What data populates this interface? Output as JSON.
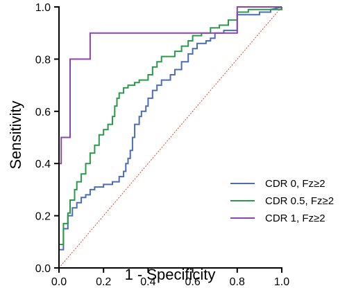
{
  "chart_data": {
    "type": "line",
    "title": "",
    "xlabel": "1 - Specificity",
    "ylabel": "Sensitivity",
    "xlim": [
      0,
      1
    ],
    "ylim": [
      0,
      1
    ],
    "x_ticks": [
      "0.0",
      "0.2",
      "0.4",
      "0.6",
      "0.8",
      "1.0"
    ],
    "y_ticks": [
      "0.0",
      "0.2",
      "0.4",
      "0.6",
      "0.8",
      "1.0"
    ],
    "grid": false,
    "legend_position": "bottom-right",
    "reference_line": {
      "color": "#e8472e",
      "style": "dotted"
    },
    "series": [
      {
        "name": "CDR 0, Fz≥2",
        "color": "#4a6db5",
        "points": [
          [
            0,
            0
          ],
          [
            0,
            0.07
          ],
          [
            0.02,
            0.07
          ],
          [
            0.02,
            0.15
          ],
          [
            0.04,
            0.15
          ],
          [
            0.04,
            0.2
          ],
          [
            0.06,
            0.2
          ],
          [
            0.06,
            0.23
          ],
          [
            0.08,
            0.23
          ],
          [
            0.08,
            0.25
          ],
          [
            0.1,
            0.25
          ],
          [
            0.1,
            0.27
          ],
          [
            0.12,
            0.27
          ],
          [
            0.12,
            0.28
          ],
          [
            0.14,
            0.28
          ],
          [
            0.14,
            0.3
          ],
          [
            0.16,
            0.3
          ],
          [
            0.16,
            0.31
          ],
          [
            0.2,
            0.31
          ],
          [
            0.2,
            0.32
          ],
          [
            0.24,
            0.32
          ],
          [
            0.24,
            0.33
          ],
          [
            0.27,
            0.33
          ],
          [
            0.27,
            0.35
          ],
          [
            0.29,
            0.35
          ],
          [
            0.29,
            0.37
          ],
          [
            0.3,
            0.37
          ],
          [
            0.3,
            0.4
          ],
          [
            0.31,
            0.4
          ],
          [
            0.31,
            0.42
          ],
          [
            0.32,
            0.42
          ],
          [
            0.32,
            0.45
          ],
          [
            0.33,
            0.45
          ],
          [
            0.33,
            0.5
          ],
          [
            0.34,
            0.5
          ],
          [
            0.34,
            0.55
          ],
          [
            0.36,
            0.55
          ],
          [
            0.36,
            0.58
          ],
          [
            0.37,
            0.58
          ],
          [
            0.37,
            0.6
          ],
          [
            0.39,
            0.6
          ],
          [
            0.39,
            0.62
          ],
          [
            0.4,
            0.62
          ],
          [
            0.4,
            0.65
          ],
          [
            0.42,
            0.65
          ],
          [
            0.42,
            0.68
          ],
          [
            0.44,
            0.68
          ],
          [
            0.44,
            0.7
          ],
          [
            0.46,
            0.7
          ],
          [
            0.46,
            0.72
          ],
          [
            0.5,
            0.72
          ],
          [
            0.5,
            0.74
          ],
          [
            0.52,
            0.74
          ],
          [
            0.52,
            0.76
          ],
          [
            0.55,
            0.76
          ],
          [
            0.55,
            0.79
          ],
          [
            0.58,
            0.79
          ],
          [
            0.58,
            0.82
          ],
          [
            0.6,
            0.82
          ],
          [
            0.6,
            0.84
          ],
          [
            0.62,
            0.84
          ],
          [
            0.62,
            0.86
          ],
          [
            0.66,
            0.86
          ],
          [
            0.66,
            0.87
          ],
          [
            0.68,
            0.87
          ],
          [
            0.68,
            0.88
          ],
          [
            0.7,
            0.88
          ],
          [
            0.7,
            0.9
          ],
          [
            0.74,
            0.9
          ],
          [
            0.74,
            0.91
          ],
          [
            0.8,
            0.91
          ],
          [
            0.8,
            0.97
          ],
          [
            0.9,
            0.97
          ],
          [
            0.9,
            0.98
          ],
          [
            0.95,
            0.98
          ],
          [
            0.95,
            0.99
          ],
          [
            1,
            1
          ]
        ]
      },
      {
        "name": "CDR 0.5, Fz≥2",
        "color": "#2a9a4a",
        "points": [
          [
            0,
            0
          ],
          [
            0,
            0.09
          ],
          [
            0.02,
            0.09
          ],
          [
            0.02,
            0.17
          ],
          [
            0.04,
            0.17
          ],
          [
            0.04,
            0.21
          ],
          [
            0.05,
            0.21
          ],
          [
            0.05,
            0.26
          ],
          [
            0.07,
            0.26
          ],
          [
            0.07,
            0.3
          ],
          [
            0.08,
            0.3
          ],
          [
            0.08,
            0.33
          ],
          [
            0.1,
            0.33
          ],
          [
            0.1,
            0.36
          ],
          [
            0.12,
            0.36
          ],
          [
            0.12,
            0.4
          ],
          [
            0.14,
            0.4
          ],
          [
            0.14,
            0.44
          ],
          [
            0.16,
            0.44
          ],
          [
            0.16,
            0.47
          ],
          [
            0.18,
            0.47
          ],
          [
            0.18,
            0.51
          ],
          [
            0.2,
            0.51
          ],
          [
            0.2,
            0.53
          ],
          [
            0.22,
            0.53
          ],
          [
            0.22,
            0.55
          ],
          [
            0.24,
            0.55
          ],
          [
            0.24,
            0.58
          ],
          [
            0.25,
            0.58
          ],
          [
            0.25,
            0.62
          ],
          [
            0.26,
            0.62
          ],
          [
            0.26,
            0.65
          ],
          [
            0.27,
            0.65
          ],
          [
            0.27,
            0.67
          ],
          [
            0.29,
            0.67
          ],
          [
            0.29,
            0.69
          ],
          [
            0.31,
            0.69
          ],
          [
            0.31,
            0.7
          ],
          [
            0.34,
            0.7
          ],
          [
            0.34,
            0.71
          ],
          [
            0.36,
            0.71
          ],
          [
            0.36,
            0.72
          ],
          [
            0.4,
            0.72
          ],
          [
            0.4,
            0.74
          ],
          [
            0.42,
            0.74
          ],
          [
            0.42,
            0.77
          ],
          [
            0.44,
            0.77
          ],
          [
            0.44,
            0.79
          ],
          [
            0.46,
            0.79
          ],
          [
            0.46,
            0.81
          ],
          [
            0.52,
            0.81
          ],
          [
            0.52,
            0.83
          ],
          [
            0.55,
            0.83
          ],
          [
            0.55,
            0.85
          ],
          [
            0.58,
            0.85
          ],
          [
            0.58,
            0.87
          ],
          [
            0.6,
            0.87
          ],
          [
            0.6,
            0.89
          ],
          [
            0.64,
            0.89
          ],
          [
            0.64,
            0.9
          ],
          [
            0.68,
            0.9
          ],
          [
            0.68,
            0.92
          ],
          [
            0.72,
            0.92
          ],
          [
            0.72,
            0.93
          ],
          [
            0.76,
            0.93
          ],
          [
            0.76,
            0.95
          ],
          [
            0.8,
            0.95
          ],
          [
            0.8,
            0.98
          ],
          [
            0.85,
            0.98
          ],
          [
            0.85,
            0.99
          ],
          [
            1,
            0.99
          ],
          [
            1,
            1
          ]
        ]
      },
      {
        "name": "CDR 1, Fz≥2",
        "color": "#8e44ad",
        "points": [
          [
            0,
            0
          ],
          [
            0,
            0.4
          ],
          [
            0.01,
            0.4
          ],
          [
            0.01,
            0.5
          ],
          [
            0.05,
            0.5
          ],
          [
            0.05,
            0.8
          ],
          [
            0.14,
            0.8
          ],
          [
            0.14,
            0.9
          ],
          [
            0.8,
            0.9
          ],
          [
            0.8,
            1
          ],
          [
            1,
            1
          ]
        ]
      }
    ]
  }
}
